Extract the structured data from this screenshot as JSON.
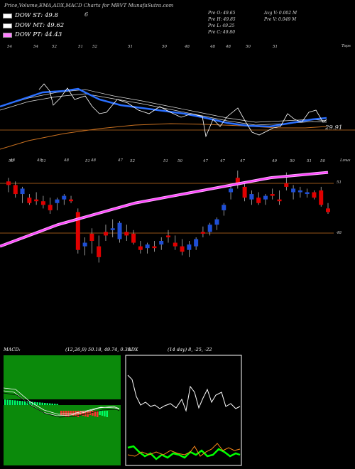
{
  "header": {
    "title": "Price,Volume,EMA,ADX,MACD Charts for MBVT MunafaSutra.com",
    "six": "6"
  },
  "legend": [
    {
      "label": "DOW ST: 49.8",
      "color": "#ffffff"
    },
    {
      "label": "DOW MT: 49.62",
      "color": "#ffffff"
    },
    {
      "label": "DOW PT: 44.43",
      "color": "#ff80ff"
    }
  ],
  "ohlc": {
    "open": "Pre O: 49.65",
    "high": "Pre H: 49.85",
    "low": "Pre L: 49.25",
    "close": "Pre C: 49.80",
    "avg_vol": "Avg V: 0.002 M",
    "pre_vol": "Pre V: 0.049 M"
  },
  "panel1": {
    "right_label": "Tops",
    "price_label": "29.91",
    "top_ticks": [
      "54",
      "54",
      "52",
      "51",
      "52",
      "51",
      "50",
      "48",
      "48",
      "48",
      "50",
      "51"
    ],
    "bottom_ticks": [
      "48",
      "49",
      "48",
      "48",
      "47"
    ]
  },
  "panel2": {
    "right_label": "Lows",
    "level_high": "51",
    "level_low": "48",
    "top_ticks": [
      "50",
      "51",
      "51",
      "52",
      "51",
      "50",
      "47",
      "47",
      "47",
      "49",
      "50",
      "51",
      "50"
    ]
  },
  "macd": {
    "title": "MACD:",
    "params": "(12,26,9) 50.18, 49.74, 0.39"
  },
  "adx": {
    "title": "ADX",
    "params": "(14 day) 8, -25, -22"
  },
  "colors": {
    "bull": "#1f4fd6",
    "bear": "#e00000",
    "ema_pink": "#ff40ff",
    "blue_line": "#2a6fff",
    "orange": "#c87020",
    "panel_green": "#0b8a0b",
    "adx_green": "#00ff00",
    "adx_orange": "#ff8a1a"
  },
  "chart_data": {
    "type": "candlestick",
    "series": [
      {
        "name": "candles",
        "values": [
          [
            51.4,
            51.6,
            50.8,
            51.2
          ],
          [
            51.2,
            51.4,
            50.5,
            50.7
          ],
          [
            50.7,
            51.1,
            50.2,
            51.0
          ],
          [
            50.5,
            50.7,
            50.1,
            50.2
          ],
          [
            50.4,
            50.8,
            50.1,
            50.3
          ],
          [
            50.3,
            50.6,
            49.9,
            50.1
          ],
          [
            50.1,
            50.5,
            49.6,
            49.8
          ],
          [
            50.2,
            50.5,
            49.8,
            50.4
          ],
          [
            50.4,
            50.7,
            50.1,
            50.6
          ],
          [
            50.4,
            50.6,
            50.2,
            50.3
          ],
          [
            49.7,
            49.9,
            47.4,
            47.6
          ],
          [
            47.8,
            48.3,
            47.3,
            48.0
          ],
          [
            48.5,
            48.8,
            47.4,
            48.1
          ],
          [
            47.8,
            48.4,
            46.9,
            47.2
          ],
          [
            48.6,
            49.0,
            48.1,
            48.4
          ],
          [
            48.7,
            49.3,
            48.3,
            48.8
          ],
          [
            48.2,
            49.2,
            48.0,
            49.1
          ],
          [
            48.6,
            49.0,
            48.1,
            48.4
          ],
          [
            48.5,
            48.7,
            47.9,
            48.0
          ],
          [
            47.8,
            48.1,
            47.4,
            47.6
          ],
          [
            47.7,
            48.0,
            47.4,
            47.9
          ],
          [
            47.8,
            48.1,
            47.5,
            47.7
          ],
          [
            47.9,
            48.3,
            47.6,
            48.1
          ],
          [
            48.4,
            48.7,
            48.0,
            48.3
          ],
          [
            48.0,
            48.4,
            47.6,
            47.8
          ],
          [
            47.8,
            48.2,
            47.3,
            47.5
          ],
          [
            47.6,
            48.1,
            47.2,
            47.9
          ],
          [
            47.8,
            48.3,
            47.6,
            48.2
          ],
          [
            48.6,
            48.9,
            48.3,
            48.5
          ],
          [
            48.6,
            49.1,
            48.4,
            49.0
          ],
          [
            49.0,
            49.4,
            48.7,
            49.3
          ],
          [
            49.8,
            50.2,
            49.5,
            50.1
          ],
          [
            50.8,
            51.2,
            50.4,
            51.0
          ],
          [
            51.6,
            52.0,
            51.0,
            51.2
          ],
          [
            51.1,
            51.3,
            50.3,
            50.5
          ],
          [
            50.4,
            50.9,
            50.1,
            50.7
          ],
          [
            50.5,
            50.8,
            50.1,
            50.2
          ],
          [
            50.4,
            50.7,
            50.1,
            50.6
          ],
          [
            50.7,
            51.0,
            50.4,
            50.6
          ],
          [
            50.4,
            50.9,
            50.1,
            50.3
          ],
          [
            51.3,
            51.9,
            50.9,
            51.1
          ],
          [
            50.8,
            51.2,
            50.4,
            51.0
          ],
          [
            50.8,
            51.1,
            50.5,
            50.9
          ],
          [
            50.7,
            51.0,
            50.5,
            50.8
          ],
          [
            50.8,
            50.9,
            50.4,
            50.5
          ],
          [
            50.9,
            51.1,
            50.0,
            50.1
          ],
          [
            49.9,
            50.2,
            49.6,
            49.7
          ]
        ]
      }
    ],
    "ema_long": [
      47.8,
      48.2,
      48.6,
      49.0,
      49.3,
      49.6,
      49.9,
      50.2,
      50.4,
      50.6,
      50.8,
      51.0,
      51.2,
      51.4,
      51.6,
      51.7,
      51.8,
      51.9
    ],
    "dow": {
      "st": 49.8,
      "mt": 49.62,
      "pt": 44.43
    },
    "macd": {
      "macd": 50.18,
      "signal": 49.74,
      "histogram": 0.39
    },
    "adx": {
      "adx": 8,
      "di_plus": -25,
      "di_minus": -22
    }
  }
}
